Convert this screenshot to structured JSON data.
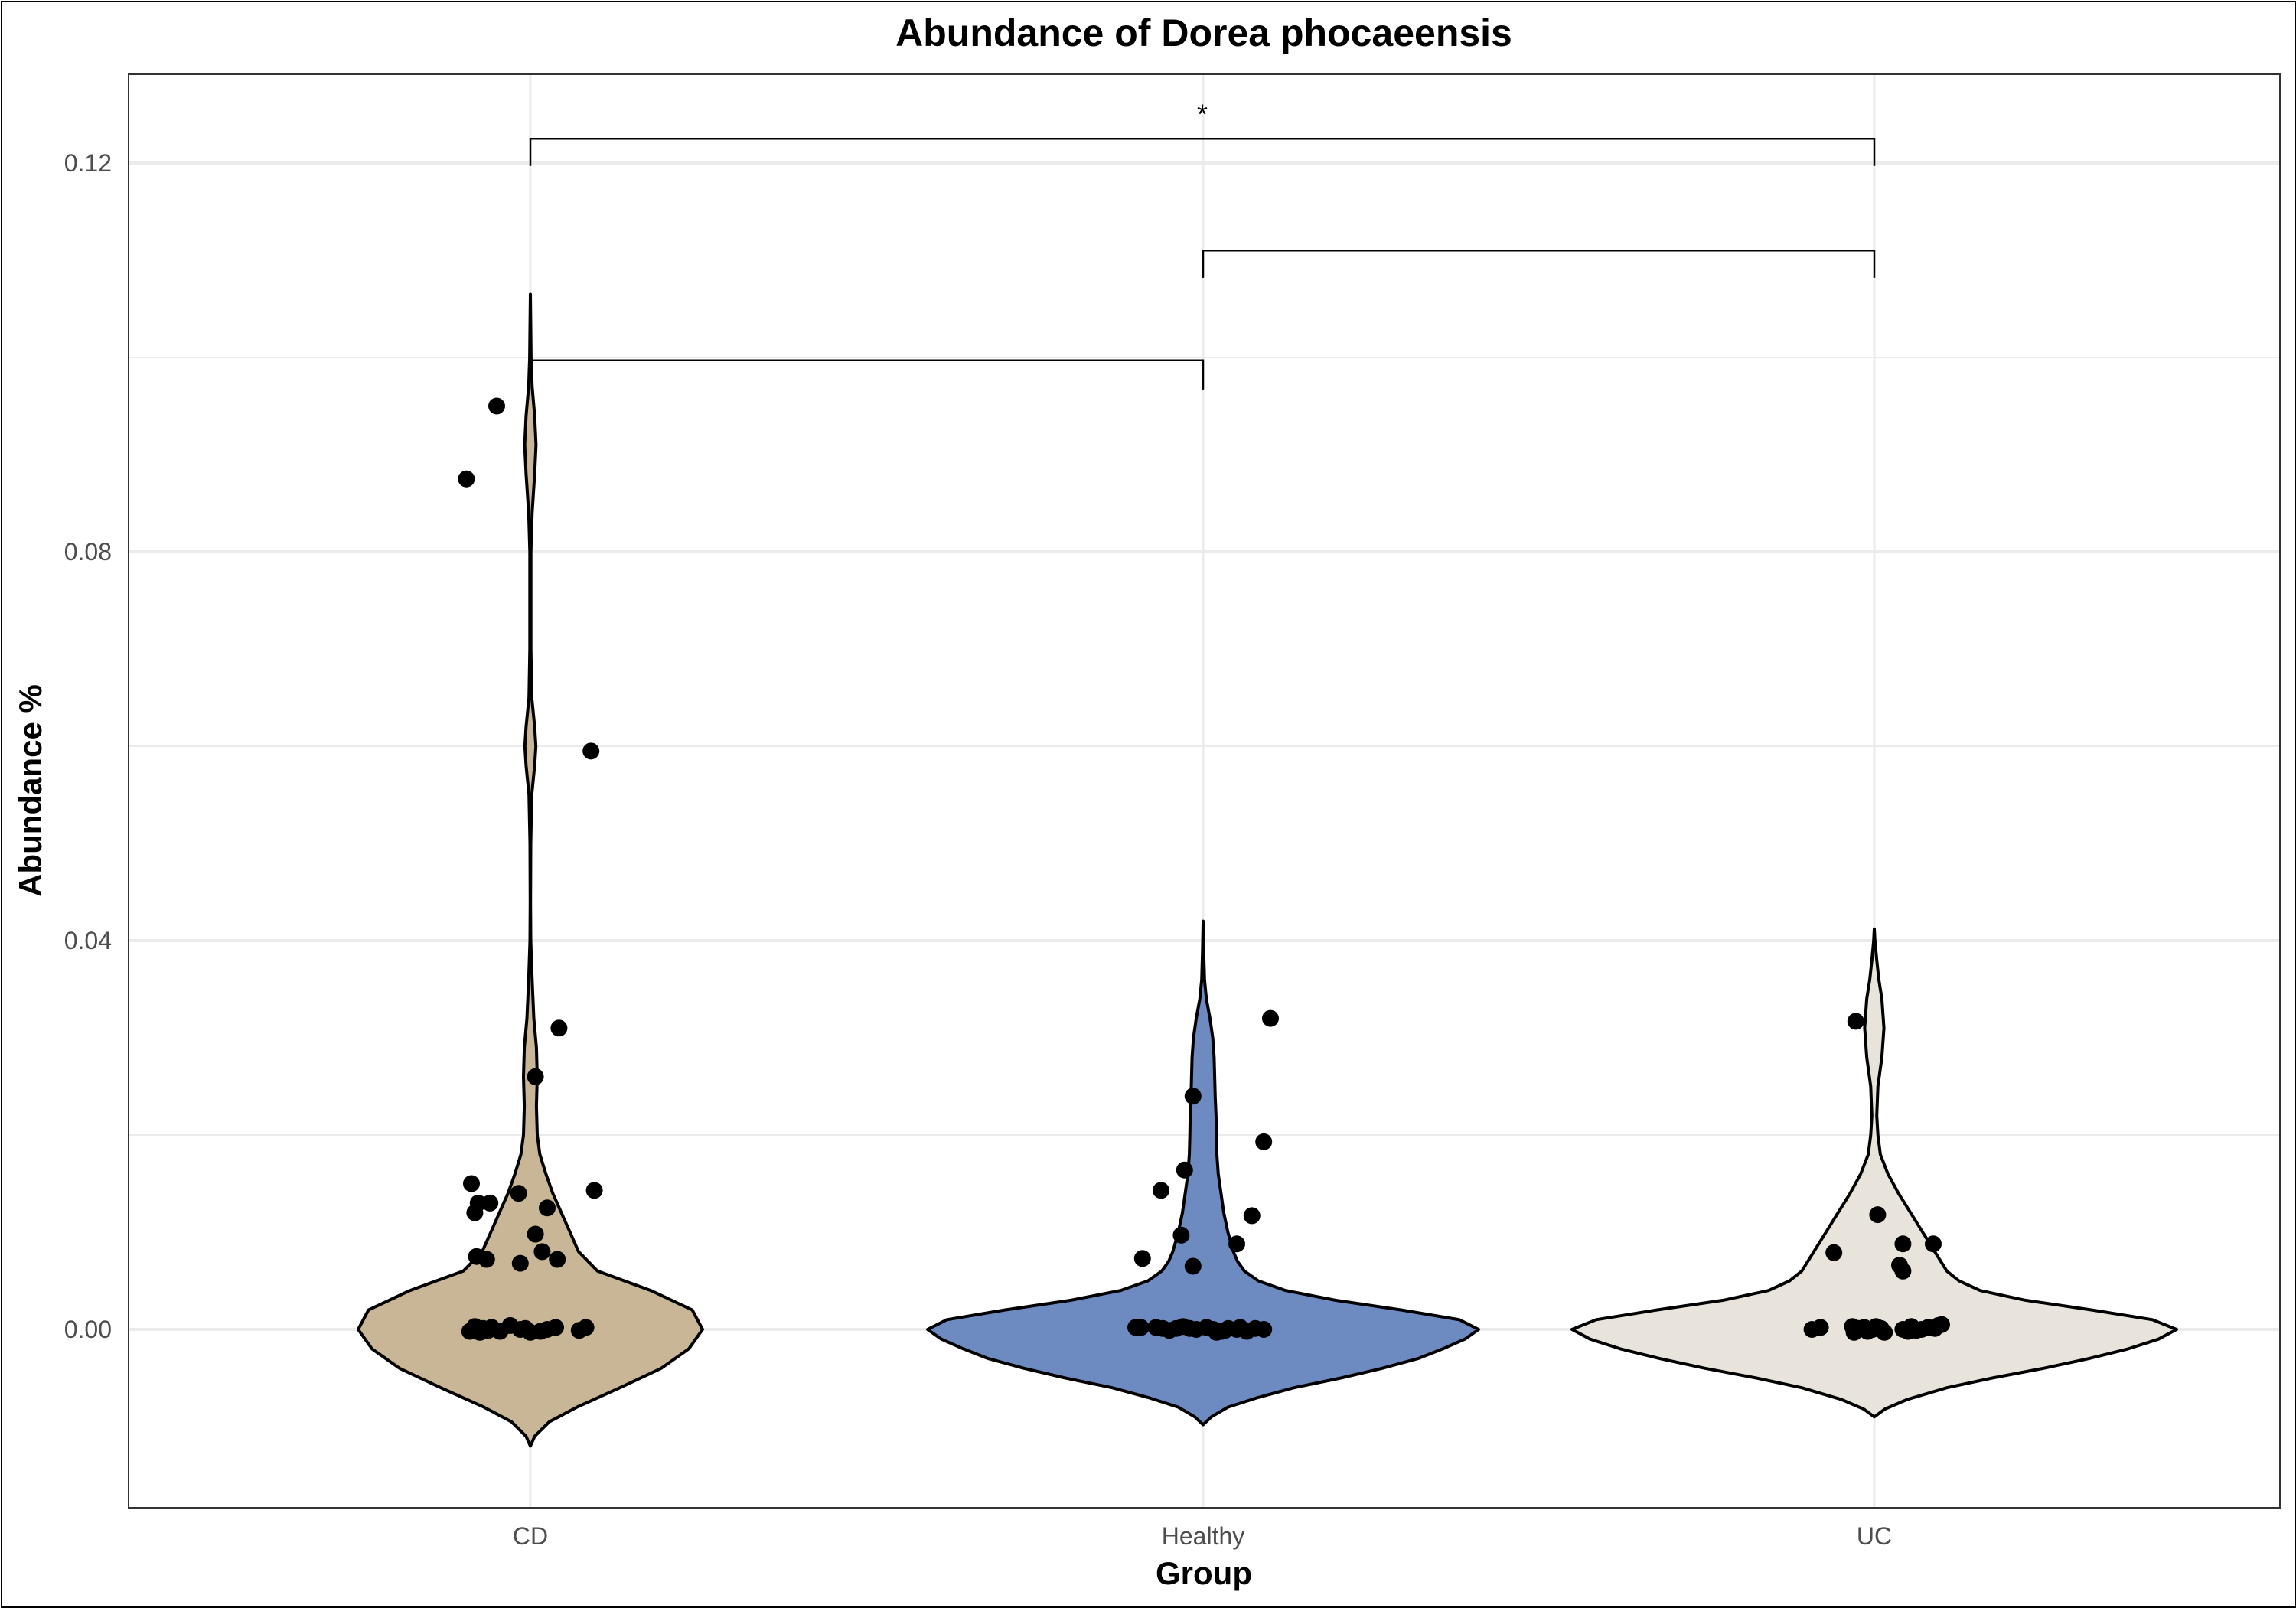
{
  "chart_data": {
    "type": "violin",
    "title": "Abundance of Dorea phocaeensis",
    "xlabel": "Group",
    "ylabel": "Abundance %",
    "ylim": [
      -0.018,
      0.129
    ],
    "yticks": [
      0.0,
      0.04,
      0.08,
      0.12
    ],
    "ytick_labels": [
      "0.00",
      "0.04",
      "0.08",
      "0.12"
    ],
    "grid": true,
    "categories": [
      "CD",
      "Healthy",
      "UC"
    ],
    "groups": [
      {
        "name": "CD",
        "fill": "#C8B696",
        "violin": {
          "bottom": -0.012,
          "top": 0.1065,
          "profile": [
            [
              -0.012,
              0.0
            ],
            [
              -0.011,
              0.025
            ],
            [
              -0.0095,
              0.11
            ],
            [
              -0.008,
              0.27
            ],
            [
              -0.006,
              0.52
            ],
            [
              -0.004,
              0.76
            ],
            [
              -0.002,
              0.92
            ],
            [
              0.0,
              1.0
            ],
            [
              0.002,
              0.94
            ],
            [
              0.004,
              0.7
            ],
            [
              0.006,
              0.39
            ],
            [
              0.008,
              0.28
            ],
            [
              0.01,
              0.23
            ],
            [
              0.012,
              0.18
            ],
            [
              0.014,
              0.13
            ],
            [
              0.016,
              0.09
            ],
            [
              0.018,
              0.055
            ],
            [
              0.02,
              0.04
            ],
            [
              0.023,
              0.035
            ],
            [
              0.026,
              0.04
            ],
            [
              0.029,
              0.035
            ],
            [
              0.032,
              0.02
            ],
            [
              0.036,
              0.01
            ],
            [
              0.04,
              0.002
            ],
            [
              0.044,
              0.001
            ],
            [
              0.05,
              0.002
            ],
            [
              0.055,
              0.008
            ],
            [
              0.058,
              0.025
            ],
            [
              0.06,
              0.032
            ],
            [
              0.062,
              0.025
            ],
            [
              0.065,
              0.008
            ],
            [
              0.07,
              0.003
            ],
            [
              0.08,
              0.003
            ],
            [
              0.084,
              0.01
            ],
            [
              0.088,
              0.025
            ],
            [
              0.091,
              0.033
            ],
            [
              0.094,
              0.025
            ],
            [
              0.097,
              0.01
            ],
            [
              0.1,
              0.004
            ],
            [
              0.103,
              0.002
            ],
            [
              0.1065,
              0.0
            ]
          ]
        },
        "points": [
          [
            -0.19,
            0.0875
          ],
          [
            -0.1,
            0.095
          ],
          [
            0.18,
            0.0595
          ],
          [
            0.085,
            0.031
          ],
          [
            0.015,
            0.026
          ],
          [
            -0.175,
            0.015
          ],
          [
            -0.155,
            0.013
          ],
          [
            -0.12,
            0.013
          ],
          [
            -0.165,
            0.012
          ],
          [
            -0.035,
            0.014
          ],
          [
            0.05,
            0.0125
          ],
          [
            0.19,
            0.0143
          ],
          [
            0.015,
            0.0098
          ],
          [
            0.035,
            0.008
          ],
          [
            0.08,
            0.0072
          ],
          [
            -0.16,
            0.0075
          ],
          [
            -0.13,
            0.0072
          ],
          [
            -0.03,
            0.0068
          ],
          [
            -0.18,
            -0.0002
          ],
          [
            -0.165,
            0.0003
          ],
          [
            -0.15,
            -0.0003
          ],
          [
            -0.14,
            0.0001
          ],
          [
            -0.125,
            -0.0001
          ],
          [
            -0.115,
            0.0002
          ],
          [
            -0.09,
            -0.0002
          ],
          [
            -0.06,
            0.0004
          ],
          [
            -0.03,
            0.0
          ],
          [
            -0.015,
            0.0001
          ],
          [
            0.0,
            -0.0003
          ],
          [
            0.03,
            -0.0002
          ],
          [
            0.05,
            0.0
          ],
          [
            0.075,
            0.0002
          ],
          [
            0.145,
            -0.0001
          ],
          [
            0.165,
            0.0002
          ]
        ]
      },
      {
        "name": "Healthy",
        "fill": "#6D8AC1",
        "violin": {
          "bottom": -0.0098,
          "top": 0.042,
          "profile": [
            [
              -0.0098,
              0.0
            ],
            [
              -0.009,
              0.03
            ],
            [
              -0.008,
              0.09
            ],
            [
              -0.007,
              0.2
            ],
            [
              -0.006,
              0.33
            ],
            [
              -0.005,
              0.5
            ],
            [
              -0.004,
              0.65
            ],
            [
              -0.003,
              0.78
            ],
            [
              -0.002,
              0.87
            ],
            [
              -0.001,
              0.95
            ],
            [
              0.0,
              1.0
            ],
            [
              0.001,
              0.93
            ],
            [
              0.002,
              0.72
            ],
            [
              0.003,
              0.48
            ],
            [
              0.004,
              0.3
            ],
            [
              0.005,
              0.2
            ],
            [
              0.006,
              0.15
            ],
            [
              0.007,
              0.125
            ],
            [
              0.008,
              0.11
            ],
            [
              0.01,
              0.09
            ],
            [
              0.012,
              0.075
            ],
            [
              0.014,
              0.065
            ],
            [
              0.016,
              0.055
            ],
            [
              0.018,
              0.05
            ],
            [
              0.02,
              0.048
            ],
            [
              0.022,
              0.047
            ],
            [
              0.024,
              0.044
            ],
            [
              0.026,
              0.042
            ],
            [
              0.028,
              0.04
            ],
            [
              0.03,
              0.035
            ],
            [
              0.032,
              0.025
            ],
            [
              0.034,
              0.012
            ],
            [
              0.036,
              0.005
            ],
            [
              0.039,
              0.002
            ],
            [
              0.042,
              0.0
            ]
          ]
        },
        "points": [
          [
            0.2,
            0.032
          ],
          [
            -0.03,
            0.024
          ],
          [
            0.18,
            0.0193
          ],
          [
            -0.055,
            0.0164
          ],
          [
            -0.125,
            0.0143
          ],
          [
            0.145,
            0.0117
          ],
          [
            -0.065,
            0.0097
          ],
          [
            0.1,
            0.0088
          ],
          [
            -0.18,
            0.0073
          ],
          [
            -0.03,
            0.0065
          ],
          [
            -0.2,
            0.0002
          ],
          [
            -0.185,
            0.0002
          ],
          [
            -0.14,
            0.0002
          ],
          [
            -0.12,
            0.0001
          ],
          [
            -0.1,
            -0.0001
          ],
          [
            -0.08,
            0.0001
          ],
          [
            -0.06,
            0.0003
          ],
          [
            -0.04,
            0.0001
          ],
          [
            -0.02,
            0.0
          ],
          [
            0.01,
            0.0002
          ],
          [
            0.03,
            0.0
          ],
          [
            0.055,
            -0.0002
          ],
          [
            0.075,
            0.0001
          ],
          [
            0.1,
            0.0
          ],
          [
            0.13,
            -0.0002
          ],
          [
            0.155,
            0.0001
          ],
          [
            0.18,
            0.0
          ],
          [
            0.04,
            -0.0003
          ],
          [
            0.065,
            -0.0001
          ],
          [
            0.11,
            0.0002
          ]
        ]
      },
      {
        "name": "UC",
        "fill": "#E8E4DC",
        "violin": {
          "bottom": -0.009,
          "top": 0.0412,
          "profile": [
            [
              -0.009,
              0.0
            ],
            [
              -0.0082,
              0.035
            ],
            [
              -0.0072,
              0.11
            ],
            [
              -0.006,
              0.24
            ],
            [
              -0.005,
              0.39
            ],
            [
              -0.004,
              0.56
            ],
            [
              -0.003,
              0.71
            ],
            [
              -0.002,
              0.84
            ],
            [
              -0.001,
              0.94
            ],
            [
              0.0,
              1.0
            ],
            [
              0.001,
              0.92
            ],
            [
              0.002,
              0.72
            ],
            [
              0.003,
              0.5
            ],
            [
              0.004,
              0.35
            ],
            [
              0.005,
              0.28
            ],
            [
              0.006,
              0.24
            ],
            [
              0.008,
              0.2
            ],
            [
              0.01,
              0.16
            ],
            [
              0.012,
              0.12
            ],
            [
              0.014,
              0.08
            ],
            [
              0.016,
              0.045
            ],
            [
              0.018,
              0.02
            ],
            [
              0.02,
              0.012
            ],
            [
              0.022,
              0.008
            ],
            [
              0.025,
              0.012
            ],
            [
              0.028,
              0.025
            ],
            [
              0.031,
              0.032
            ],
            [
              0.034,
              0.025
            ],
            [
              0.036,
              0.015
            ],
            [
              0.038,
              0.008
            ],
            [
              0.04,
              0.002
            ],
            [
              0.0412,
              0.0
            ]
          ]
        },
        "points": [
          [
            -0.055,
            0.0317
          ],
          [
            0.01,
            0.0118
          ],
          [
            0.085,
            0.0088
          ],
          [
            -0.12,
            0.0079
          ],
          [
            0.175,
            0.0088
          ],
          [
            0.075,
            0.0066
          ],
          [
            0.085,
            0.006
          ],
          [
            -0.185,
            0.0
          ],
          [
            -0.16,
            0.0002
          ],
          [
            -0.065,
            0.0003
          ],
          [
            -0.06,
            -0.0003
          ],
          [
            -0.045,
            0.0001
          ],
          [
            -0.03,
            0.0002
          ],
          [
            -0.02,
            -0.0002
          ],
          [
            -0.005,
            0.0
          ],
          [
            0.005,
            0.0003
          ],
          [
            0.02,
            0.0001
          ],
          [
            0.03,
            -0.0003
          ],
          [
            0.085,
            0.0
          ],
          [
            0.1,
            -0.0002
          ],
          [
            0.11,
            0.0003
          ],
          [
            0.125,
            -0.0001
          ],
          [
            0.14,
            0.0
          ],
          [
            0.16,
            0.0002
          ],
          [
            0.18,
            0.0001
          ],
          [
            0.19,
            0.0004
          ],
          [
            0.2,
            0.0005
          ],
          [
            0.11,
            -0.0001
          ]
        ]
      }
    ],
    "significance": [
      {
        "from": "CD",
        "to": "Healthy",
        "y": 0.0997,
        "drop_left": 0.0012,
        "drop_right": 0.003,
        "label": ""
      },
      {
        "from": "Healthy",
        "to": "UC",
        "y": 0.111,
        "drop_left": 0.0028,
        "drop_right": 0.0028,
        "label": ""
      },
      {
        "from": "CD",
        "to": "UC",
        "y": 0.1225,
        "drop_left": 0.0028,
        "drop_right": 0.0028,
        "label": "*"
      }
    ]
  }
}
